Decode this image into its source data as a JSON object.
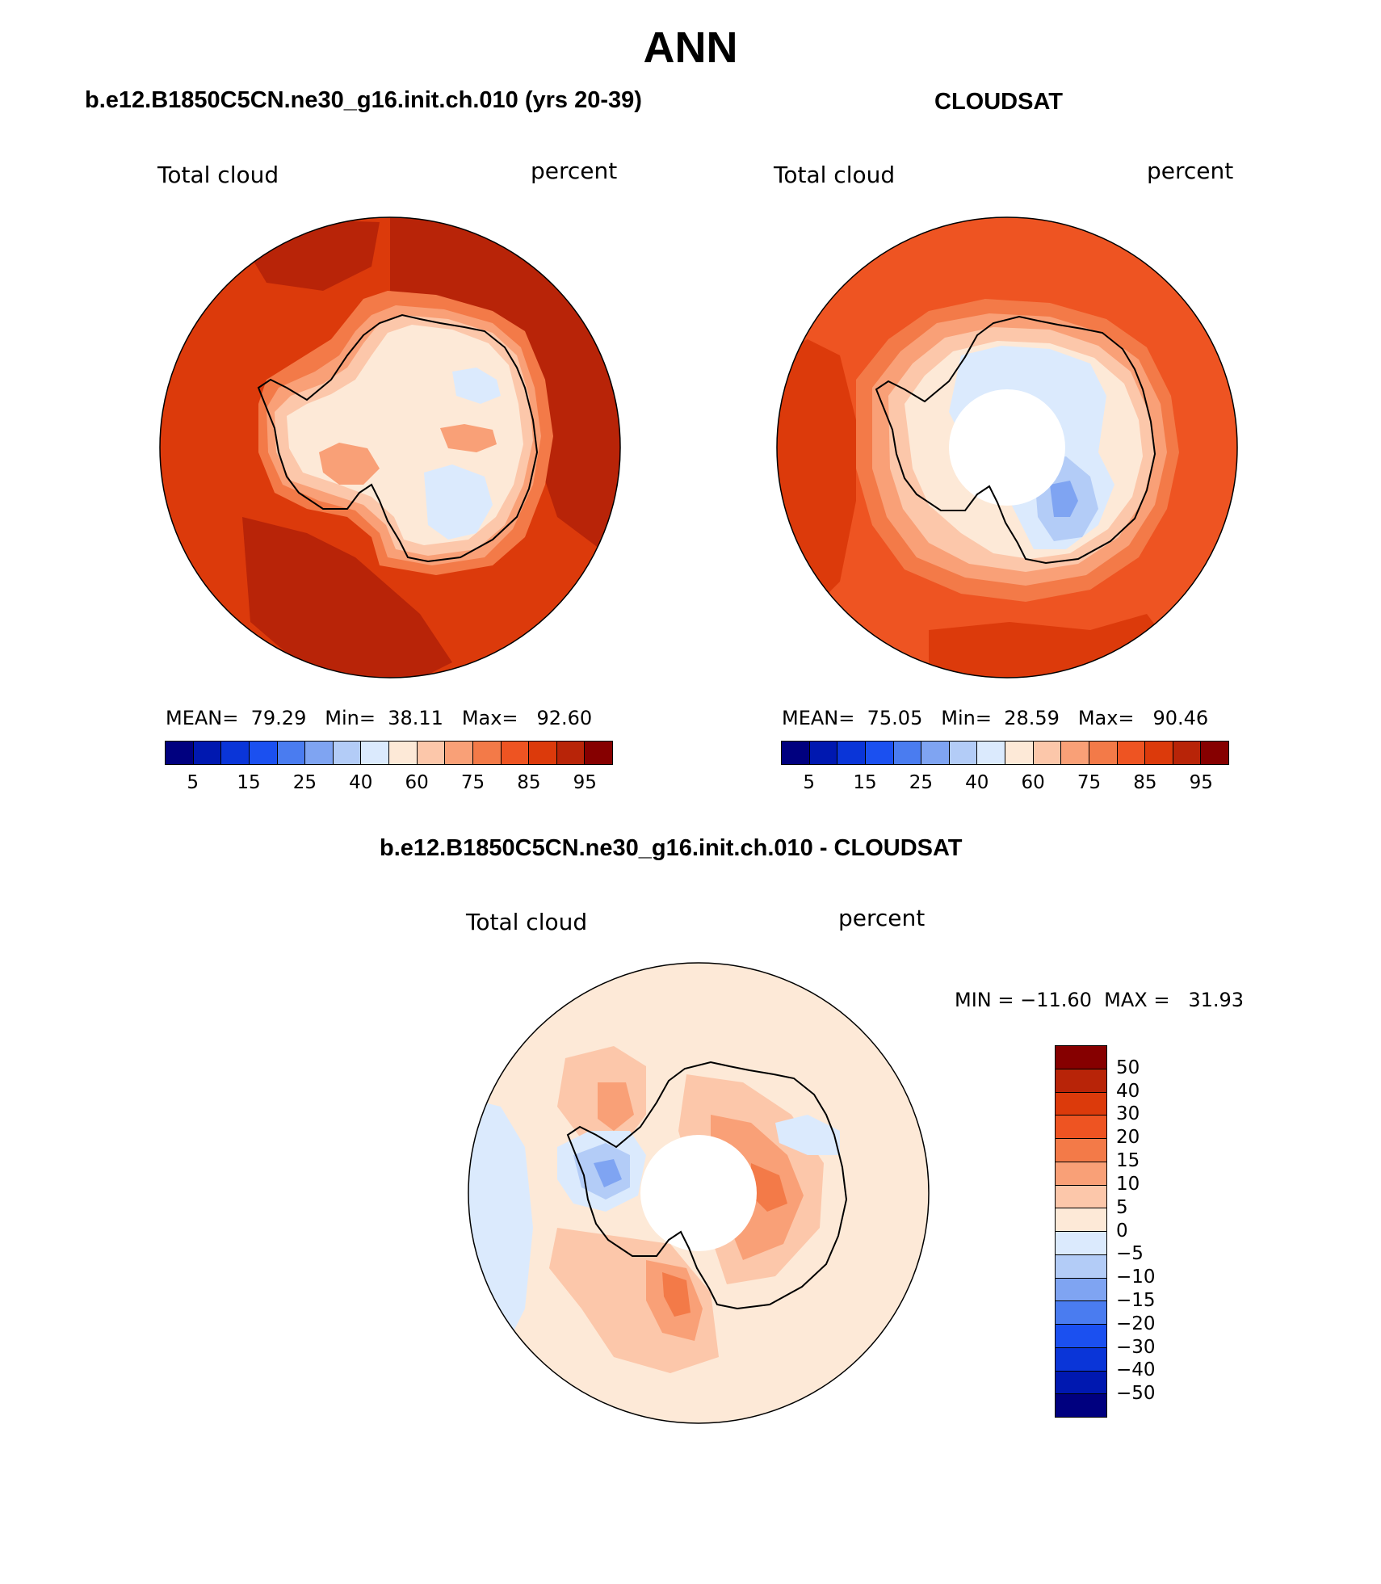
{
  "figure_title": "ANN",
  "panels": [
    {
      "case": "b.e12.B1850C5CN.ne30_g16.init.ch.010 (yrs 20-39)",
      "left_label": "Total cloud",
      "right_label": "percent",
      "stats": {
        "mean_label": "MEAN=",
        "mean": "79.29",
        "min_label": "Min=",
        "min": "38.11",
        "max_label": "Max=",
        "max": "92.60"
      }
    },
    {
      "case": "CLOUDSAT",
      "left_label": "Total cloud",
      "right_label": "percent",
      "stats": {
        "mean_label": "MEAN=",
        "mean": "75.05",
        "min_label": "Min=",
        "min": "28.59",
        "max_label": "Max=",
        "max": "90.46"
      }
    },
    {
      "case": "b.e12.B1850C5CN.ne30_g16.init.ch.010 - CLOUDSAT",
      "left_label": "Total cloud",
      "right_label": "percent",
      "minmax_text": "MIN = −11.60  MAX =   31.93"
    }
  ],
  "colorbar_abs": {
    "colors": [
      "#00007f",
      "#0018b0",
      "#0a35d8",
      "#1b50f0",
      "#4a7cf0",
      "#7fa4f2",
      "#b3ccf7",
      "#dbeafd",
      "#fde9d7",
      "#fcc7aa",
      "#f9a077",
      "#f37a48",
      "#ee5422",
      "#dc3a0b",
      "#b82408",
      "#860000"
    ],
    "tick_labels": [
      "5",
      "15",
      "25",
      "40",
      "60",
      "75",
      "85",
      "95"
    ]
  },
  "colorbar_diff": {
    "colors": [
      "#00007f",
      "#0018b0",
      "#0a35d8",
      "#1b50f0",
      "#4a7cf0",
      "#7fa4f2",
      "#b3ccf7",
      "#dbeafd",
      "#fde9d7",
      "#fcc7aa",
      "#f9a077",
      "#f37a48",
      "#ee5422",
      "#dc3a0b",
      "#b82408",
      "#860000"
    ],
    "tick_labels": [
      "−50",
      "−40",
      "−30",
      "−20",
      "−15",
      "−10",
      "−5",
      "0",
      "5",
      "10",
      "15",
      "20",
      "30",
      "40",
      "50"
    ]
  },
  "map_colors": {
    "ocean_abs_1": "#dc3a0b",
    "ocean_abs_1b": "#b82408",
    "ocean_abs_2": "#ee5422",
    "ocean_abs_2b": "#dc3a0b",
    "ring_1": "#f37a48",
    "ring_2": "#f9a077",
    "ring_3": "#fcc7aa",
    "interior": "#fde9d7",
    "blue_1": "#dbeafd",
    "blue_2": "#b3ccf7",
    "blue_3": "#7fa4f2",
    "diff_base": "#fde9d7",
    "diff_red_1": "#fcc7aa",
    "diff_red_2": "#f9a077",
    "diff_red_3": "#f37a48",
    "diff_blue_1": "#dbeafd",
    "diff_blue_2": "#b3ccf7",
    "diff_blue_3": "#7fa4f2",
    "missing": "#ffffff",
    "coast": "#000000"
  }
}
